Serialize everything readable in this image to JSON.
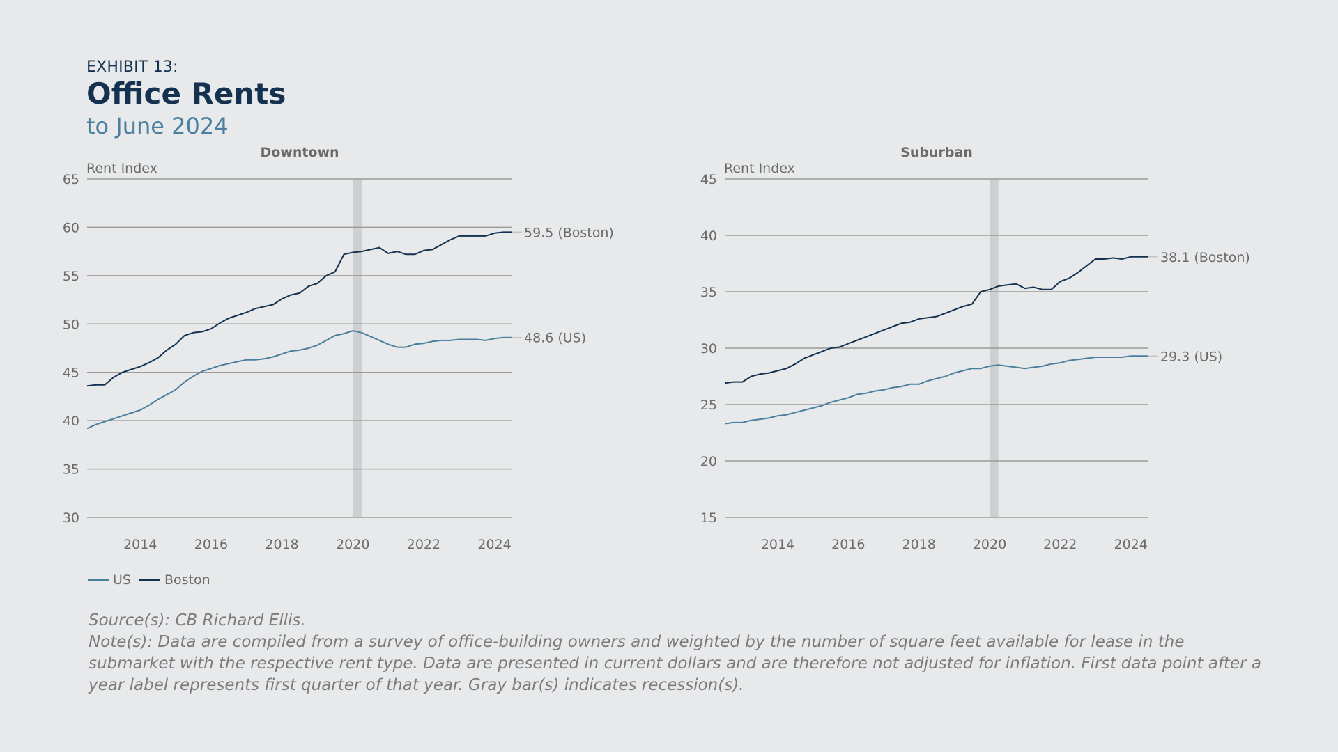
{
  "header": {
    "exhibit": "EXHIBIT 13:",
    "title": "Office Rents",
    "subtitle": "to June 2024"
  },
  "legend": [
    {
      "label": "US",
      "color": "#4a7f9e"
    },
    {
      "label": "Boston",
      "color": "#14324f"
    }
  ],
  "footer": {
    "source": "Source(s): CB Richard Ellis.",
    "note": "Note(s): Data are compiled from a survey of office-building owners and weighted by the number of square feet available for lease in the submarket with the respective rent type. Data are presented in current dollars and are therefore not adjusted for inflation. First data point after a year label represents first quarter of that year. Gray bar(s) indicates recession(s)."
  },
  "chart_data": [
    {
      "type": "line",
      "title": "Downtown",
      "ylabel": "Rent Index",
      "xlabel": "",
      "ylim": [
        30,
        65
      ],
      "yticks": [
        30,
        35,
        40,
        45,
        50,
        55,
        60,
        65
      ],
      "xlim": [
        2012.5,
        2024.5
      ],
      "xticks": [
        2014,
        2016,
        2018,
        2020,
        2022,
        2024
      ],
      "grid": true,
      "legend": "bottom-left",
      "recession": [
        2020.0,
        2020.25
      ],
      "series": [
        {
          "name": "US",
          "color": "#4a7f9e",
          "end_label": "48.6 (US)",
          "x": [
            2012.5,
            2012.75,
            2013.0,
            2013.25,
            2013.5,
            2013.75,
            2014.0,
            2014.25,
            2014.5,
            2014.75,
            2015.0,
            2015.25,
            2015.5,
            2015.75,
            2016.0,
            2016.25,
            2016.5,
            2016.75,
            2017.0,
            2017.25,
            2017.5,
            2017.75,
            2018.0,
            2018.25,
            2018.5,
            2018.75,
            2019.0,
            2019.25,
            2019.5,
            2019.75,
            2020.0,
            2020.25,
            2020.5,
            2020.75,
            2021.0,
            2021.25,
            2021.5,
            2021.75,
            2022.0,
            2022.25,
            2022.5,
            2022.75,
            2023.0,
            2023.25,
            2023.5,
            2023.75,
            2024.0,
            2024.25,
            2024.5
          ],
          "y": [
            39.2,
            39.6,
            39.9,
            40.2,
            40.5,
            40.8,
            41.1,
            41.6,
            42.2,
            42.7,
            43.2,
            44.0,
            44.6,
            45.1,
            45.4,
            45.7,
            45.9,
            46.1,
            46.3,
            46.3,
            46.4,
            46.6,
            46.9,
            47.2,
            47.3,
            47.5,
            47.8,
            48.3,
            48.8,
            49.0,
            49.3,
            49.1,
            48.7,
            48.3,
            47.9,
            47.6,
            47.6,
            47.9,
            48.0,
            48.2,
            48.3,
            48.3,
            48.4,
            48.4,
            48.4,
            48.3,
            48.5,
            48.6,
            48.6
          ]
        },
        {
          "name": "Boston",
          "color": "#14324f",
          "end_label": "59.5 (Boston)",
          "x": [
            2012.5,
            2012.75,
            2013.0,
            2013.25,
            2013.5,
            2013.75,
            2014.0,
            2014.25,
            2014.5,
            2014.75,
            2015.0,
            2015.25,
            2015.5,
            2015.75,
            2016.0,
            2016.25,
            2016.5,
            2016.75,
            2017.0,
            2017.25,
            2017.5,
            2017.75,
            2018.0,
            2018.25,
            2018.5,
            2018.75,
            2019.0,
            2019.25,
            2019.5,
            2019.75,
            2020.0,
            2020.25,
            2020.5,
            2020.75,
            2021.0,
            2021.25,
            2021.5,
            2021.75,
            2022.0,
            2022.25,
            2022.5,
            2022.75,
            2023.0,
            2023.25,
            2023.5,
            2023.75,
            2024.0,
            2024.25,
            2024.5
          ],
          "y": [
            43.6,
            43.7,
            43.7,
            44.5,
            45.0,
            45.3,
            45.6,
            46.0,
            46.5,
            47.3,
            47.9,
            48.8,
            49.1,
            49.2,
            49.5,
            50.1,
            50.6,
            50.9,
            51.2,
            51.6,
            51.8,
            52.0,
            52.6,
            53.0,
            53.2,
            53.9,
            54.2,
            55.0,
            55.4,
            57.2,
            57.4,
            57.5,
            57.7,
            57.9,
            57.3,
            57.5,
            57.2,
            57.2,
            57.6,
            57.7,
            58.2,
            58.7,
            59.1,
            59.1,
            59.1,
            59.1,
            59.4,
            59.5,
            59.5
          ]
        }
      ]
    },
    {
      "type": "line",
      "title": "Suburban",
      "ylabel": "Rent Index",
      "xlabel": "",
      "ylim": [
        15,
        45
      ],
      "yticks": [
        15,
        20,
        25,
        30,
        35,
        40,
        45
      ],
      "xlim": [
        2012.5,
        2024.5
      ],
      "xticks": [
        2014,
        2016,
        2018,
        2020,
        2022,
        2024
      ],
      "grid": true,
      "recession": [
        2020.0,
        2020.25
      ],
      "series": [
        {
          "name": "US",
          "color": "#4a7f9e",
          "end_label": "29.3  (US)",
          "x": [
            2012.5,
            2012.75,
            2013.0,
            2013.25,
            2013.5,
            2013.75,
            2014.0,
            2014.25,
            2014.5,
            2014.75,
            2015.0,
            2015.25,
            2015.5,
            2015.75,
            2016.0,
            2016.25,
            2016.5,
            2016.75,
            2017.0,
            2017.25,
            2017.5,
            2017.75,
            2018.0,
            2018.25,
            2018.5,
            2018.75,
            2019.0,
            2019.25,
            2019.5,
            2019.75,
            2020.0,
            2020.25,
            2020.5,
            2020.75,
            2021.0,
            2021.25,
            2021.5,
            2021.75,
            2022.0,
            2022.25,
            2022.5,
            2022.75,
            2023.0,
            2023.25,
            2023.5,
            2023.75,
            2024.0,
            2024.25,
            2024.5
          ],
          "y": [
            23.3,
            23.4,
            23.4,
            23.6,
            23.7,
            23.8,
            24.0,
            24.1,
            24.3,
            24.5,
            24.7,
            24.9,
            25.2,
            25.4,
            25.6,
            25.9,
            26.0,
            26.2,
            26.3,
            26.5,
            26.6,
            26.8,
            26.8,
            27.1,
            27.3,
            27.5,
            27.8,
            28.0,
            28.2,
            28.2,
            28.4,
            28.5,
            28.4,
            28.3,
            28.2,
            28.3,
            28.4,
            28.6,
            28.7,
            28.9,
            29.0,
            29.1,
            29.2,
            29.2,
            29.2,
            29.2,
            29.3,
            29.3,
            29.3
          ]
        },
        {
          "name": "Boston",
          "color": "#14324f",
          "end_label": "38.1  (Boston)",
          "x": [
            2012.5,
            2012.75,
            2013.0,
            2013.25,
            2013.5,
            2013.75,
            2014.0,
            2014.25,
            2014.5,
            2014.75,
            2015.0,
            2015.25,
            2015.5,
            2015.75,
            2016.0,
            2016.25,
            2016.5,
            2016.75,
            2017.0,
            2017.25,
            2017.5,
            2017.75,
            2018.0,
            2018.25,
            2018.5,
            2018.75,
            2019.0,
            2019.25,
            2019.5,
            2019.75,
            2020.0,
            2020.25,
            2020.5,
            2020.75,
            2021.0,
            2021.25,
            2021.5,
            2021.75,
            2022.0,
            2022.25,
            2022.5,
            2022.75,
            2023.0,
            2023.25,
            2023.5,
            2023.75,
            2024.0,
            2024.25,
            2024.5
          ],
          "y": [
            26.9,
            27.0,
            27.0,
            27.5,
            27.7,
            27.8,
            28.0,
            28.2,
            28.6,
            29.1,
            29.4,
            29.7,
            30.0,
            30.1,
            30.4,
            30.7,
            31.0,
            31.3,
            31.6,
            31.9,
            32.2,
            32.3,
            32.6,
            32.7,
            32.8,
            33.1,
            33.4,
            33.7,
            33.9,
            35.0,
            35.2,
            35.5,
            35.6,
            35.7,
            35.3,
            35.4,
            35.2,
            35.2,
            35.9,
            36.2,
            36.7,
            37.3,
            37.9,
            37.9,
            38.0,
            37.9,
            38.1,
            38.1,
            38.1
          ]
        }
      ]
    }
  ]
}
